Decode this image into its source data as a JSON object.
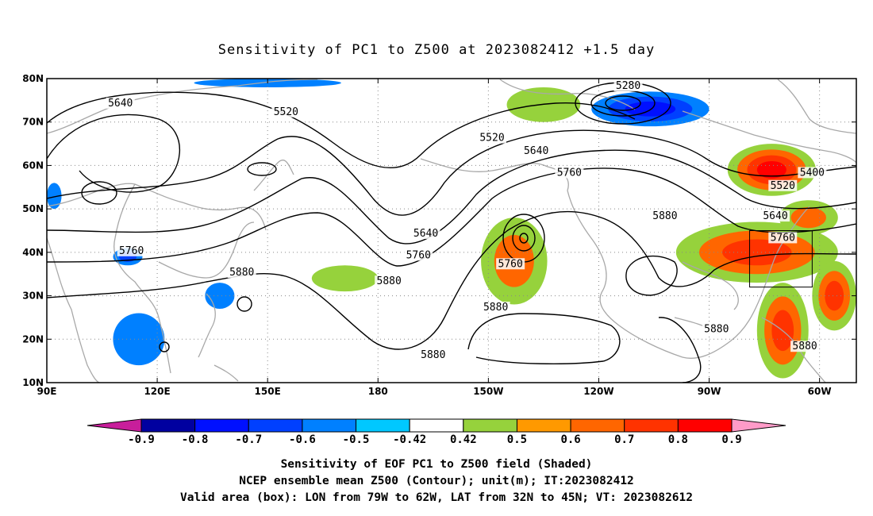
{
  "chart_data": {
    "type": "contour_map",
    "title": "Sensitivity of PC1 to Z500 at 2023082412 +1.5 day",
    "lon_range": [
      90,
      310
    ],
    "lat_range": [
      10,
      80
    ],
    "x_ticks": [
      "90E",
      "120E",
      "150E",
      "180",
      "150W",
      "120W",
      "90W",
      "60W"
    ],
    "y_ticks": [
      "80N",
      "70N",
      "60N",
      "50N",
      "40N",
      "30N",
      "20N",
      "10N"
    ],
    "grid": "dotted",
    "shading_variable": "Sensitivity of EOF PC1 to Z500",
    "contour_variable": "NCEP ensemble mean Z500 (m)",
    "contour_labels": [
      {
        "text": "5640",
        "lon": 110,
        "lat": 74
      },
      {
        "text": "5520",
        "lon": 155,
        "lat": 72
      },
      {
        "text": "5280",
        "lon": 248,
        "lat": 78
      },
      {
        "text": "5520",
        "lon": 211,
        "lat": 66
      },
      {
        "text": "5640",
        "lon": 223,
        "lat": 63
      },
      {
        "text": "5760",
        "lon": 232,
        "lat": 58
      },
      {
        "text": "5400",
        "lon": 298,
        "lat": 58
      },
      {
        "text": "5520",
        "lon": 290,
        "lat": 55
      },
      {
        "text": "5640",
        "lon": 288,
        "lat": 48
      },
      {
        "text": "5760",
        "lon": 290,
        "lat": 43
      },
      {
        "text": "5880",
        "lon": 258,
        "lat": 48
      },
      {
        "text": "5760",
        "lon": 113,
        "lat": 40
      },
      {
        "text": "5880",
        "lon": 143,
        "lat": 35
      },
      {
        "text": "5640",
        "lon": 193,
        "lat": 44
      },
      {
        "text": "5760",
        "lon": 191,
        "lat": 39
      },
      {
        "text": "5880",
        "lon": 183,
        "lat": 33
      },
      {
        "text": "5760",
        "lon": 216,
        "lat": 37
      },
      {
        "text": "5880",
        "lon": 212,
        "lat": 27
      },
      {
        "text": "5880",
        "lon": 195,
        "lat": 16
      },
      {
        "text": "5880",
        "lon": 272,
        "lat": 22
      },
      {
        "text": "5880",
        "lon": 296,
        "lat": 18
      }
    ],
    "positive_regions": [
      {
        "lon": 225,
        "lat": 74,
        "rx": 10,
        "ry": 4,
        "level": 0.5
      },
      {
        "lon": 287,
        "lat": 59,
        "rx": 12,
        "ry": 6,
        "level": 0.8
      },
      {
        "lon": 283,
        "lat": 40,
        "rx": 22,
        "ry": 7,
        "level": 0.7
      },
      {
        "lon": 290,
        "lat": 22,
        "rx": 7,
        "ry": 11,
        "level": 0.7
      },
      {
        "lon": 217,
        "lat": 38,
        "rx": 9,
        "ry": 10,
        "level": 0.6
      },
      {
        "lon": 304,
        "lat": 30,
        "rx": 6,
        "ry": 8,
        "level": 0.7
      },
      {
        "lon": 171,
        "lat": 34,
        "rx": 9,
        "ry": 3,
        "level": 0.5
      },
      {
        "lon": 297,
        "lat": 48,
        "rx": 8,
        "ry": 4,
        "level": 0.6
      }
    ],
    "negative_regions": [
      {
        "lon": 254,
        "lat": 73,
        "rx": 16,
        "ry": 4,
        "level": -0.7
      },
      {
        "lon": 115,
        "lat": 20,
        "rx": 7,
        "ry": 6,
        "level": -0.5
      },
      {
        "lon": 112,
        "lat": 39,
        "rx": 4,
        "ry": 2,
        "level": -0.6
      },
      {
        "lon": 137,
        "lat": 30,
        "rx": 4,
        "ry": 3,
        "level": -0.5
      },
      {
        "lon": 92,
        "lat": 53,
        "rx": 2,
        "ry": 3,
        "level": -0.5
      },
      {
        "lon": 150,
        "lat": 79,
        "rx": 20,
        "ry": 1,
        "level": -0.5
      }
    ],
    "valid_box": {
      "lon": [
        281,
        298
      ],
      "lat": [
        32,
        45
      ]
    },
    "colorbar": {
      "labels": [
        "-0.9",
        "-0.8",
        "-0.7",
        "-0.6",
        "-0.5",
        "-0.42",
        "0.42",
        "0.5",
        "0.6",
        "0.7",
        "0.8",
        "0.9"
      ],
      "colors": [
        "#0000a0",
        "#0010ff",
        "#0040ff",
        "#0080ff",
        "#00c8ff",
        "#ffffff",
        "#96d23c",
        "#ff9900",
        "#ff6600",
        "#ff3300",
        "#ff0000"
      ],
      "low_color": "#c81e9b",
      "high_color": "#ff9bc8"
    },
    "caption_lines": [
      "Sensitivity of EOF PC1 to Z500 field (Shaded)",
      "NCEP ensemble mean Z500 (Contour); unit(m); IT:2023082412",
      "Valid area (box): LON from 79W to 62W, LAT from 32N to 45N; VT: 2023082612"
    ]
  }
}
